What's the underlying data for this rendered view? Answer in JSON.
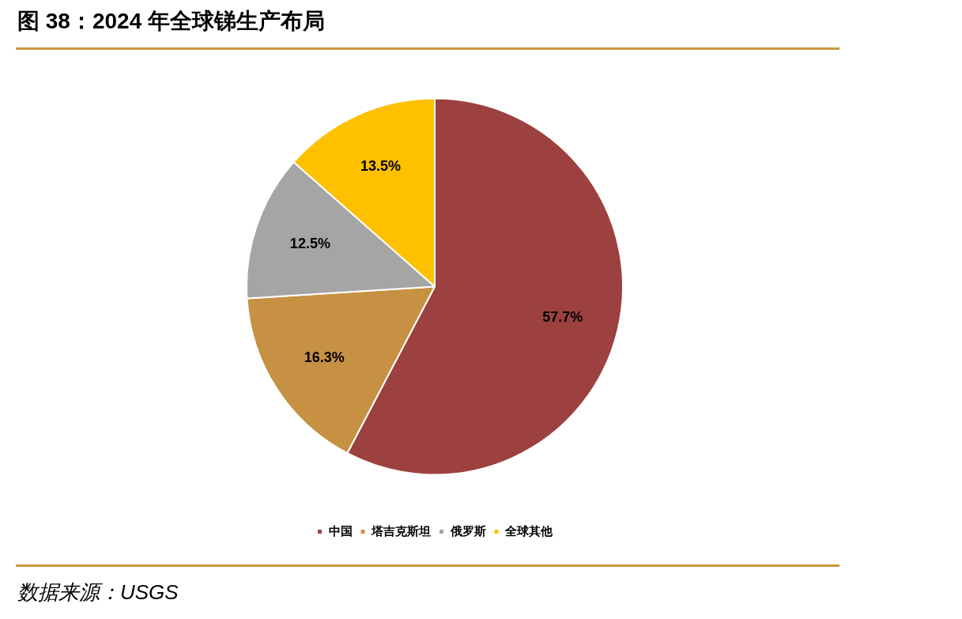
{
  "chart_data": {
    "type": "pie",
    "title": "图 38：2024 年全球锑生产布局",
    "categories": [
      "中国",
      "塔吉克斯坦",
      "俄罗斯",
      "全球其他"
    ],
    "values": [
      57.7,
      16.3,
      12.5,
      13.5
    ],
    "colors": [
      "#9c4140",
      "#c69142",
      "#a5a5a5",
      "#ffc000"
    ],
    "value_labels": [
      "57.7%",
      "16.3%",
      "12.5%",
      "13.5%"
    ],
    "legend": "bottom",
    "annotations": [
      "数据来源：USGS"
    ]
  }
}
